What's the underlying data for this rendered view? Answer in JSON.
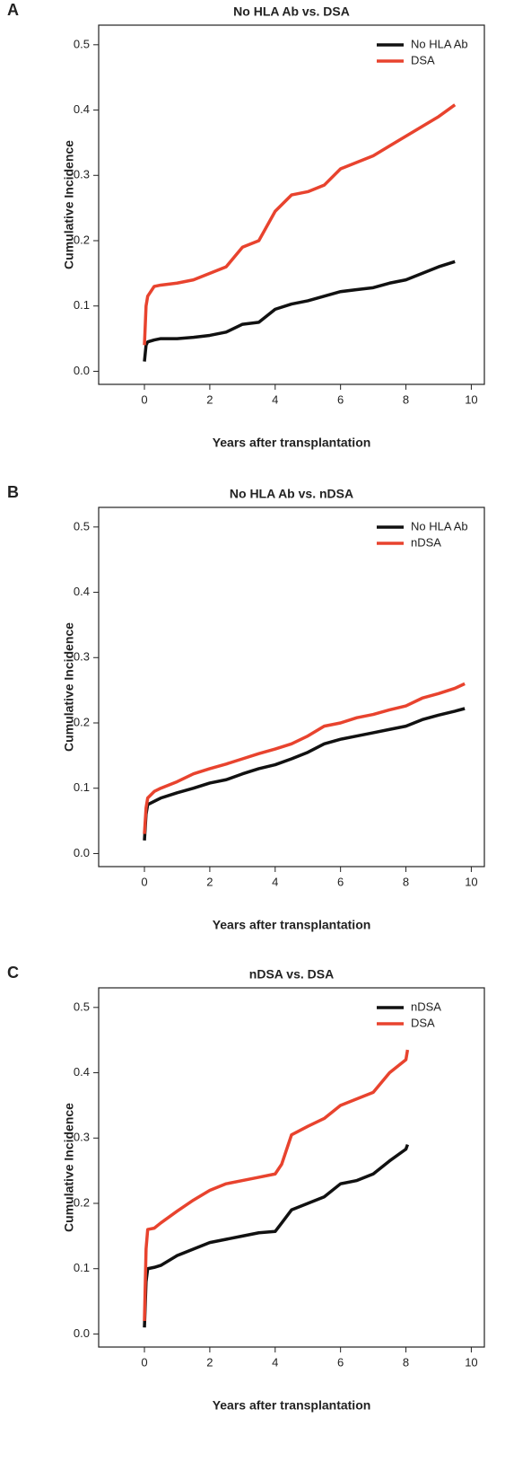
{
  "chart_data": [
    {
      "type": "line",
      "label": "A",
      "title": "No HLA Ab vs. DSA",
      "xlabel": "Years after transplantation",
      "ylabel": "Cumulative Incidence",
      "x": [
        0,
        0.05,
        0.1,
        0.3,
        0.5,
        1,
        1.5,
        2,
        2.5,
        3,
        3.5,
        4,
        4.5,
        5,
        5.5,
        6,
        6.5,
        7,
        7.5,
        8,
        8.5,
        9,
        9.5
      ],
      "series": [
        {
          "name": "No HLA Ab",
          "color": "#111111",
          "values": [
            0.015,
            0.04,
            0.045,
            0.048,
            0.05,
            0.05,
            0.052,
            0.055,
            0.06,
            0.072,
            0.075,
            0.095,
            0.103,
            0.108,
            0.115,
            0.122,
            0.125,
            0.128,
            0.135,
            0.14,
            0.15,
            0.16,
            0.168
          ]
        },
        {
          "name": "DSA",
          "color": "#e8432e",
          "values": [
            0.04,
            0.1,
            0.115,
            0.13,
            0.132,
            0.135,
            0.14,
            0.15,
            0.16,
            0.19,
            0.2,
            0.245,
            0.27,
            0.275,
            0.285,
            0.31,
            0.32,
            0.33,
            0.345,
            0.36,
            0.375,
            0.39,
            0.408
          ]
        }
      ],
      "xlim": [
        -1.4,
        10.4
      ],
      "ylim": [
        -0.02,
        0.53
      ],
      "xticks": [
        0,
        2,
        4,
        6,
        8,
        10
      ],
      "yticks": [
        {
          "value": 0,
          "label": "0.0"
        },
        0.1,
        0.2,
        0.3,
        0.4,
        0.5
      ],
      "legend": "top-right"
    },
    {
      "type": "line",
      "label": "B",
      "title": "No HLA Ab vs. nDSA",
      "xlabel": "Years after transplantation",
      "ylabel": "Cumulative Incidence",
      "x": [
        0,
        0.05,
        0.1,
        0.3,
        0.5,
        1,
        1.5,
        2,
        2.5,
        3,
        3.5,
        4,
        4.5,
        5,
        5.5,
        6,
        6.5,
        7,
        7.5,
        8,
        8.5,
        9,
        9.5,
        9.8
      ],
      "series": [
        {
          "name": "No HLA Ab",
          "color": "#111111",
          "values": [
            0.02,
            0.06,
            0.075,
            0.08,
            0.085,
            0.093,
            0.1,
            0.108,
            0.113,
            0.122,
            0.13,
            0.136,
            0.145,
            0.155,
            0.168,
            0.175,
            0.18,
            0.185,
            0.19,
            0.195,
            0.205,
            0.212,
            0.218,
            0.222
          ]
        },
        {
          "name": "nDSA",
          "color": "#e8432e",
          "values": [
            0.03,
            0.07,
            0.085,
            0.095,
            0.1,
            0.11,
            0.122,
            0.13,
            0.137,
            0.145,
            0.153,
            0.16,
            0.168,
            0.18,
            0.195,
            0.2,
            0.208,
            0.213,
            0.22,
            0.226,
            0.238,
            0.245,
            0.253,
            0.26
          ]
        }
      ],
      "xlim": [
        -1.4,
        10.4
      ],
      "ylim": [
        -0.02,
        0.53
      ],
      "xticks": [
        0,
        2,
        4,
        6,
        8,
        10
      ],
      "yticks": [
        {
          "value": 0,
          "label": "0.0"
        },
        0.1,
        0.2,
        0.3,
        0.4,
        0.5
      ],
      "legend": "top-right"
    },
    {
      "type": "line",
      "label": "C",
      "title": "nDSA vs. DSA",
      "xlabel": "Years after transplantation",
      "ylabel": "Cumulative Incidence",
      "x": [
        0,
        0.05,
        0.1,
        0.3,
        0.5,
        1,
        1.5,
        2,
        2.5,
        3,
        3.5,
        4,
        4.2,
        4.5,
        5,
        5.5,
        6,
        6.5,
        7,
        7.5,
        8,
        8.05
      ],
      "series": [
        {
          "name": "nDSA",
          "color": "#111111",
          "values": [
            0.01,
            0.08,
            0.1,
            0.102,
            0.105,
            0.12,
            0.13,
            0.14,
            0.145,
            0.15,
            0.155,
            0.157,
            0.17,
            0.19,
            0.2,
            0.21,
            0.23,
            0.235,
            0.245,
            0.265,
            0.283,
            0.29
          ]
        },
        {
          "name": "DSA",
          "color": "#e8432e",
          "values": [
            0.02,
            0.13,
            0.16,
            0.162,
            0.17,
            0.188,
            0.205,
            0.22,
            0.23,
            0.235,
            0.24,
            0.245,
            0.26,
            0.305,
            0.318,
            0.33,
            0.35,
            0.36,
            0.37,
            0.4,
            0.42,
            0.435
          ]
        }
      ],
      "xlim": [
        -1.4,
        10.4
      ],
      "ylim": [
        -0.02,
        0.53
      ],
      "xticks": [
        0,
        2,
        4,
        6,
        8,
        10
      ],
      "yticks": [
        {
          "value": 0,
          "label": "0.0"
        },
        0.1,
        0.2,
        0.3,
        0.4,
        0.5
      ],
      "legend": "top-right"
    }
  ]
}
